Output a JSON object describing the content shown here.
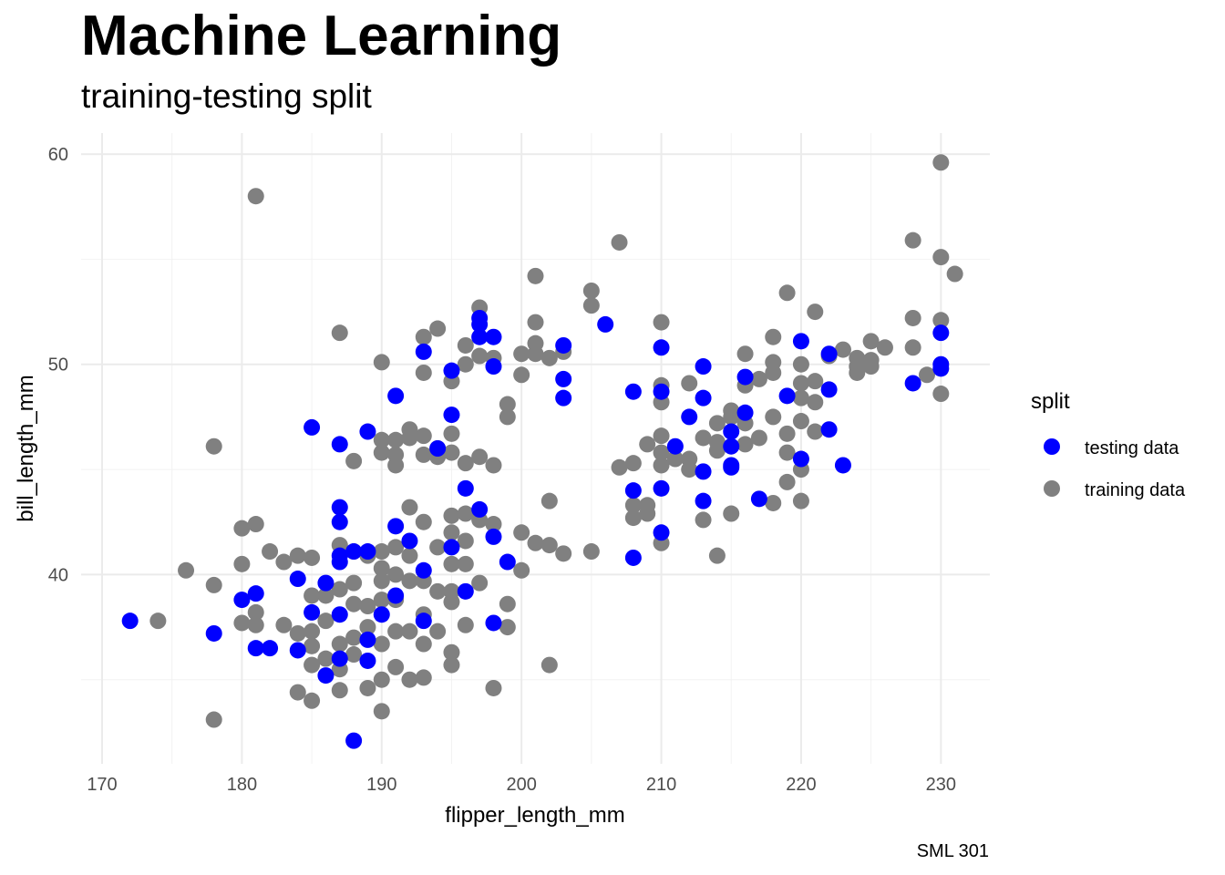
{
  "chart_data": {
    "type": "scatter",
    "title": "Machine Learning",
    "subtitle": "training-testing split",
    "xlabel": "flipper_length_mm",
    "ylabel": "bill_length_mm",
    "caption": "SML 301",
    "xlim": [
      168.5,
      233.5
    ],
    "ylim": [
      31,
      61
    ],
    "x_ticks": [
      170,
      180,
      190,
      200,
      210,
      220,
      230
    ],
    "y_ticks": [
      40,
      50,
      60
    ],
    "grid": true,
    "legend": {
      "title": "split",
      "position": "right"
    },
    "series": [
      {
        "name": "testing data",
        "color": "#0000ff",
        "points": [
          [
            172,
            37.8
          ],
          [
            178,
            37.2
          ],
          [
            180,
            38.8
          ],
          [
            181,
            39.1
          ],
          [
            181,
            36.5
          ],
          [
            182,
            36.5
          ],
          [
            184,
            39.8
          ],
          [
            184,
            36.4
          ],
          [
            185,
            38.2
          ],
          [
            185,
            47.0
          ],
          [
            186,
            39.6
          ],
          [
            186,
            35.2
          ],
          [
            187,
            46.2
          ],
          [
            187,
            43.2
          ],
          [
            187,
            42.5
          ],
          [
            187,
            40.9
          ],
          [
            187,
            40.6
          ],
          [
            187,
            38.1
          ],
          [
            187,
            36.0
          ],
          [
            188,
            41.1
          ],
          [
            188,
            32.1
          ],
          [
            189,
            46.8
          ],
          [
            189,
            41.1
          ],
          [
            189,
            36.9
          ],
          [
            189,
            35.9
          ],
          [
            190,
            38.1
          ],
          [
            191,
            48.5
          ],
          [
            191,
            42.3
          ],
          [
            191,
            39.0
          ],
          [
            192,
            41.6
          ],
          [
            193,
            50.6
          ],
          [
            193,
            40.2
          ],
          [
            193,
            37.8
          ],
          [
            194,
            46.0
          ],
          [
            195,
            49.7
          ],
          [
            195,
            47.6
          ],
          [
            195,
            41.3
          ],
          [
            196,
            44.1
          ],
          [
            196,
            39.2
          ],
          [
            197,
            52.2
          ],
          [
            197,
            51.9
          ],
          [
            197,
            51.3
          ],
          [
            197,
            43.1
          ],
          [
            198,
            51.3
          ],
          [
            198,
            49.9
          ],
          [
            198,
            41.8
          ],
          [
            198,
            37.7
          ],
          [
            199,
            40.6
          ],
          [
            203,
            50.9
          ],
          [
            203,
            49.3
          ],
          [
            203,
            48.4
          ],
          [
            206,
            51.9
          ],
          [
            208,
            48.7
          ],
          [
            208,
            44.0
          ],
          [
            208,
            40.8
          ],
          [
            210,
            50.8
          ],
          [
            210,
            48.7
          ],
          [
            210,
            44.1
          ],
          [
            210,
            42.0
          ],
          [
            211,
            46.1
          ],
          [
            212,
            47.5
          ],
          [
            213,
            49.9
          ],
          [
            213,
            48.4
          ],
          [
            213,
            44.9
          ],
          [
            213,
            43.5
          ],
          [
            215,
            46.8
          ],
          [
            215,
            46.1
          ],
          [
            215,
            45.2
          ],
          [
            215,
            45.1
          ],
          [
            216,
            49.4
          ],
          [
            216,
            47.7
          ],
          [
            217,
            43.6
          ],
          [
            219,
            48.5
          ],
          [
            220,
            51.1
          ],
          [
            220,
            45.5
          ],
          [
            222,
            50.5
          ],
          [
            222,
            48.8
          ],
          [
            222,
            46.9
          ],
          [
            223,
            45.2
          ],
          [
            228,
            49.1
          ],
          [
            230,
            51.5
          ],
          [
            230,
            50.0
          ],
          [
            230,
            49.8
          ]
        ]
      },
      {
        "name": "training data",
        "color": "#808080",
        "points": [
          [
            174,
            37.8
          ],
          [
            176,
            40.2
          ],
          [
            178,
            46.1
          ],
          [
            178,
            39.5
          ],
          [
            178,
            33.1
          ],
          [
            180,
            42.2
          ],
          [
            180,
            40.5
          ],
          [
            180,
            37.7
          ],
          [
            181,
            58.0
          ],
          [
            181,
            42.4
          ],
          [
            181,
            38.2
          ],
          [
            181,
            37.6
          ],
          [
            182,
            41.1
          ],
          [
            183,
            40.6
          ],
          [
            183,
            37.6
          ],
          [
            184,
            40.9
          ],
          [
            184,
            37.2
          ],
          [
            184,
            34.4
          ],
          [
            185,
            40.8
          ],
          [
            185,
            39.0
          ],
          [
            185,
            37.3
          ],
          [
            185,
            36.6
          ],
          [
            185,
            35.7
          ],
          [
            185,
            34.0
          ],
          [
            186,
            39.0
          ],
          [
            186,
            37.8
          ],
          [
            186,
            36.0
          ],
          [
            187,
            51.5
          ],
          [
            187,
            41.4
          ],
          [
            187,
            39.3
          ],
          [
            187,
            36.7
          ],
          [
            187,
            35.5
          ],
          [
            187,
            34.5
          ],
          [
            188,
            45.4
          ],
          [
            188,
            41.1
          ],
          [
            188,
            39.6
          ],
          [
            188,
            38.6
          ],
          [
            188,
            37.0
          ],
          [
            188,
            36.2
          ],
          [
            189,
            40.9
          ],
          [
            189,
            38.5
          ],
          [
            189,
            37.5
          ],
          [
            189,
            34.6
          ],
          [
            190,
            50.1
          ],
          [
            190,
            46.4
          ],
          [
            190,
            45.8
          ],
          [
            190,
            41.1
          ],
          [
            190,
            40.3
          ],
          [
            190,
            39.7
          ],
          [
            190,
            38.8
          ],
          [
            190,
            36.7
          ],
          [
            190,
            35.0
          ],
          [
            190,
            33.5
          ],
          [
            191,
            46.4
          ],
          [
            191,
            45.7
          ],
          [
            191,
            45.2
          ],
          [
            191,
            41.3
          ],
          [
            191,
            40.0
          ],
          [
            191,
            38.8
          ],
          [
            191,
            37.3
          ],
          [
            191,
            35.6
          ],
          [
            192,
            46.9
          ],
          [
            192,
            46.5
          ],
          [
            192,
            43.2
          ],
          [
            192,
            40.9
          ],
          [
            192,
            39.7
          ],
          [
            192,
            37.3
          ],
          [
            192,
            35.0
          ],
          [
            193,
            51.3
          ],
          [
            193,
            49.6
          ],
          [
            193,
            46.6
          ],
          [
            193,
            45.7
          ],
          [
            193,
            42.5
          ],
          [
            193,
            39.7
          ],
          [
            193,
            38.1
          ],
          [
            193,
            36.7
          ],
          [
            193,
            35.1
          ],
          [
            194,
            51.7
          ],
          [
            194,
            46.0
          ],
          [
            194,
            45.6
          ],
          [
            194,
            41.3
          ],
          [
            194,
            39.2
          ],
          [
            194,
            37.3
          ],
          [
            195,
            49.2
          ],
          [
            195,
            46.7
          ],
          [
            195,
            45.8
          ],
          [
            195,
            42.8
          ],
          [
            195,
            42.0
          ],
          [
            195,
            40.5
          ],
          [
            195,
            39.2
          ],
          [
            195,
            38.7
          ],
          [
            195,
            36.3
          ],
          [
            195,
            35.7
          ],
          [
            196,
            50.9
          ],
          [
            196,
            50.0
          ],
          [
            196,
            45.3
          ],
          [
            196,
            42.9
          ],
          [
            196,
            41.6
          ],
          [
            196,
            40.5
          ],
          [
            196,
            37.6
          ],
          [
            197,
            52.7
          ],
          [
            197,
            50.4
          ],
          [
            197,
            45.6
          ],
          [
            197,
            42.6
          ],
          [
            197,
            39.6
          ],
          [
            198,
            50.3
          ],
          [
            198,
            45.2
          ],
          [
            198,
            42.4
          ],
          [
            198,
            34.6
          ],
          [
            199,
            48.1
          ],
          [
            199,
            47.5
          ],
          [
            199,
            38.6
          ],
          [
            199,
            37.5
          ],
          [
            200,
            50.5
          ],
          [
            200,
            49.5
          ],
          [
            200,
            42.0
          ],
          [
            200,
            40.2
          ],
          [
            201,
            54.2
          ],
          [
            201,
            52.0
          ],
          [
            201,
            51.0
          ],
          [
            201,
            50.5
          ],
          [
            201,
            41.5
          ],
          [
            202,
            50.3
          ],
          [
            202,
            43.5
          ],
          [
            202,
            41.4
          ],
          [
            202,
            35.7
          ],
          [
            203,
            50.6
          ],
          [
            203,
            41.0
          ],
          [
            205,
            53.5
          ],
          [
            205,
            52.8
          ],
          [
            205,
            41.1
          ],
          [
            207,
            55.8
          ],
          [
            207,
            45.1
          ],
          [
            208,
            45.3
          ],
          [
            208,
            43.3
          ],
          [
            208,
            42.7
          ],
          [
            209,
            46.2
          ],
          [
            209,
            43.3
          ],
          [
            209,
            42.9
          ],
          [
            210,
            52.0
          ],
          [
            210,
            49.0
          ],
          [
            210,
            48.2
          ],
          [
            210,
            46.6
          ],
          [
            210,
            45.8
          ],
          [
            210,
            45.2
          ],
          [
            210,
            41.5
          ],
          [
            211,
            45.5
          ],
          [
            212,
            49.1
          ],
          [
            212,
            45.5
          ],
          [
            212,
            45.0
          ],
          [
            213,
            46.5
          ],
          [
            213,
            42.6
          ],
          [
            214,
            47.2
          ],
          [
            214,
            46.3
          ],
          [
            214,
            45.9
          ],
          [
            214,
            40.9
          ],
          [
            215,
            47.8
          ],
          [
            215,
            47.5
          ],
          [
            215,
            42.9
          ],
          [
            216,
            50.5
          ],
          [
            216,
            49.0
          ],
          [
            216,
            47.2
          ],
          [
            216,
            46.2
          ],
          [
            217,
            49.3
          ],
          [
            217,
            46.5
          ],
          [
            218,
            51.3
          ],
          [
            218,
            50.1
          ],
          [
            218,
            49.6
          ],
          [
            218,
            47.5
          ],
          [
            218,
            43.4
          ],
          [
            219,
            53.4
          ],
          [
            219,
            46.7
          ],
          [
            219,
            45.8
          ],
          [
            219,
            44.4
          ],
          [
            220,
            50.0
          ],
          [
            220,
            49.1
          ],
          [
            220,
            48.4
          ],
          [
            220,
            47.3
          ],
          [
            220,
            45.0
          ],
          [
            220,
            43.5
          ],
          [
            221,
            52.5
          ],
          [
            221,
            49.2
          ],
          [
            221,
            48.2
          ],
          [
            221,
            46.8
          ],
          [
            222,
            50.4
          ],
          [
            223,
            50.7
          ],
          [
            224,
            50.3
          ],
          [
            224,
            49.9
          ],
          [
            224,
            49.6
          ],
          [
            225,
            51.1
          ],
          [
            225,
            50.2
          ],
          [
            225,
            49.9
          ],
          [
            226,
            50.8
          ],
          [
            228,
            55.9
          ],
          [
            228,
            52.2
          ],
          [
            228,
            50.8
          ],
          [
            229,
            49.5
          ],
          [
            230,
            59.6
          ],
          [
            230,
            55.1
          ],
          [
            230,
            52.1
          ],
          [
            230,
            48.6
          ],
          [
            231,
            54.3
          ]
        ]
      }
    ]
  }
}
